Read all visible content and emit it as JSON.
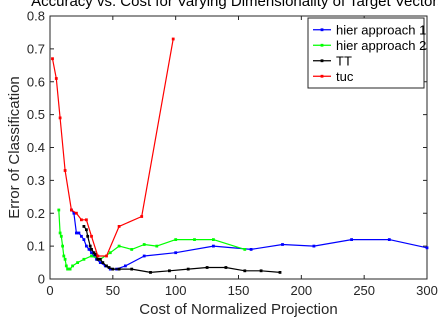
{
  "chart_data": {
    "type": "line",
    "title": "Accuracy vs. Cost for Varying Dimensionality of Target Vectors",
    "xlabel": "Cost of Normalized Projection",
    "ylabel": "Error of Classification",
    "xlim": [
      0,
      300
    ],
    "ylim": [
      0,
      0.8
    ],
    "xticks": [
      0,
      50,
      100,
      150,
      200,
      250,
      300
    ],
    "yticks": [
      0,
      0.1,
      0.2,
      0.3,
      0.4,
      0.5,
      0.6,
      0.7,
      0.8
    ],
    "xtick_labels": [
      "0",
      "50",
      "100",
      "150",
      "200",
      "250",
      "300"
    ],
    "ytick_labels": [
      "0",
      "0.1",
      "0.2",
      "0.3",
      "0.4",
      "0.5",
      "0.6",
      "0.7",
      "0.8"
    ],
    "grid": false,
    "legend_position": "top-right",
    "series": [
      {
        "name": "hier approach 1",
        "color": "#0000ff",
        "x": [
          17,
          19,
          21,
          23,
          25,
          27,
          29,
          31,
          33,
          35,
          37,
          40,
          44,
          48,
          53,
          60,
          75,
          100,
          130,
          160,
          185,
          210,
          240,
          270,
          300
        ],
        "y": [
          0.21,
          0.2,
          0.14,
          0.14,
          0.13,
          0.12,
          0.1,
          0.09,
          0.08,
          0.07,
          0.06,
          0.05,
          0.04,
          0.03,
          0.03,
          0.04,
          0.07,
          0.08,
          0.1,
          0.09,
          0.105,
          0.1,
          0.12,
          0.12,
          0.095
        ]
      },
      {
        "name": "hier approach 2",
        "color": "#00ff00",
        "x": [
          7,
          8,
          9,
          10,
          11,
          12,
          13,
          14,
          15,
          16,
          18,
          22,
          27,
          33,
          40,
          48,
          55,
          65,
          75,
          85,
          100,
          115,
          130,
          155
        ],
        "y": [
          0.21,
          0.14,
          0.13,
          0.1,
          0.07,
          0.06,
          0.04,
          0.03,
          0.03,
          0.03,
          0.04,
          0.05,
          0.06,
          0.07,
          0.06,
          0.08,
          0.1,
          0.09,
          0.105,
          0.1,
          0.12,
          0.12,
          0.12,
          0.09
        ]
      },
      {
        "name": "TT",
        "color": "#000000",
        "x": [
          27,
          29,
          30,
          32,
          33,
          35,
          36,
          38,
          40,
          42,
          45,
          47,
          50,
          55,
          65,
          80,
          95,
          110,
          125,
          140,
          155,
          168,
          183
        ],
        "y": [
          0.16,
          0.15,
          0.13,
          0.1,
          0.09,
          0.08,
          0.075,
          0.06,
          0.06,
          0.05,
          0.04,
          0.035,
          0.03,
          0.03,
          0.03,
          0.02,
          0.025,
          0.03,
          0.035,
          0.035,
          0.025,
          0.025,
          0.02
        ]
      },
      {
        "name": "tuc",
        "color": "#ff0000",
        "x": [
          2,
          5,
          8,
          12,
          17,
          21,
          25,
          29,
          33,
          38,
          45,
          55,
          73,
          98
        ],
        "y": [
          0.67,
          0.61,
          0.49,
          0.33,
          0.21,
          0.2,
          0.18,
          0.18,
          0.13,
          0.07,
          0.07,
          0.16,
          0.19,
          0.73
        ]
      }
    ]
  }
}
